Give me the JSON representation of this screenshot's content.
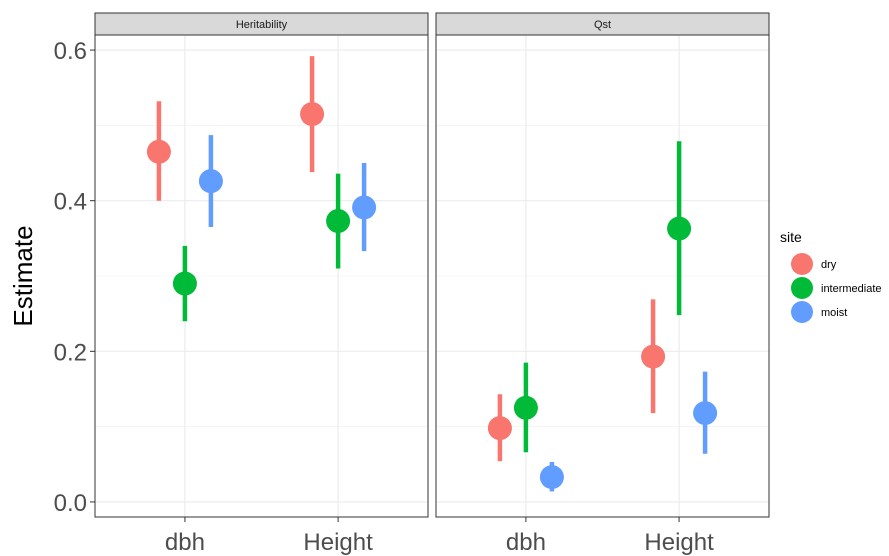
{
  "chart_data": {
    "type": "scatter",
    "subtype": "point-range",
    "ylabel": "Estimate",
    "xlabel": "",
    "ylim": [
      -0.02,
      0.62
    ],
    "yticks": [
      0.0,
      0.2,
      0.4,
      0.6
    ],
    "ytick_labels": [
      "0.0",
      "0.2",
      "0.4",
      "0.6"
    ],
    "categories": [
      "dbh",
      "Height"
    ],
    "grid": true,
    "legend": {
      "title": "site",
      "placement": "right",
      "entries": [
        {
          "name": "dry",
          "color": "#F8766D"
        },
        {
          "name": "intermediate",
          "color": "#00BA38"
        },
        {
          "name": "moist",
          "color": "#619CFF"
        }
      ]
    },
    "panels": [
      {
        "title": "Heritability",
        "series": [
          {
            "name": "dry",
            "values": [
              0.465,
              0.515
            ],
            "lower": [
              0.4,
              0.438
            ],
            "upper": [
              0.532,
              0.592
            ]
          },
          {
            "name": "intermediate",
            "values": [
              0.29,
              0.373
            ],
            "lower": [
              0.24,
              0.31
            ],
            "upper": [
              0.34,
              0.436
            ]
          },
          {
            "name": "moist",
            "values": [
              0.426,
              0.391
            ],
            "lower": [
              0.365,
              0.333
            ],
            "upper": [
              0.487,
              0.45
            ]
          }
        ]
      },
      {
        "title": "Qst",
        "series": [
          {
            "name": "dry",
            "values": [
              0.098,
              0.193
            ],
            "lower": [
              0.054,
              0.118
            ],
            "upper": [
              0.143,
              0.269
            ]
          },
          {
            "name": "intermediate",
            "values": [
              0.125,
              0.363
            ],
            "lower": [
              0.066,
              0.248
            ],
            "upper": [
              0.185,
              0.479
            ]
          },
          {
            "name": "moist",
            "values": [
              0.033,
              0.118
            ],
            "lower": [
              0.014,
              0.064
            ],
            "upper": [
              0.053,
              0.173
            ]
          }
        ]
      }
    ]
  }
}
